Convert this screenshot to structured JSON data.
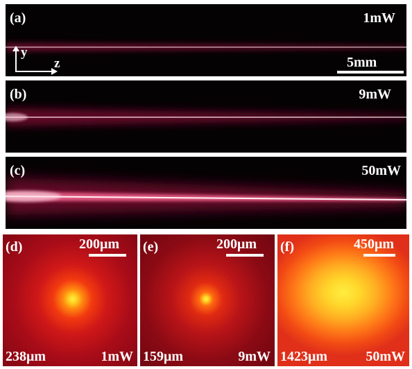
{
  "panels": {
    "a": {
      "label": "(a)",
      "power": "1mW",
      "axis_y": "y",
      "axis_z": "z",
      "scale": "5mm"
    },
    "b": {
      "label": "(b)",
      "power": "9mW"
    },
    "c": {
      "label": "(c)",
      "power": "50mW"
    },
    "d": {
      "label": "(d)",
      "scale": "200μm",
      "width": "238μm",
      "power": "1mW"
    },
    "e": {
      "label": "(e)",
      "scale": "200μm",
      "width": "159μm",
      "power": "9mW"
    },
    "f": {
      "label": "(f)",
      "scale": "450μm",
      "width": "1423μm",
      "power": "50mW"
    }
  },
  "colors": {
    "background": "#050203",
    "beam": "#ff3a6a",
    "spot_core": "#fff04a",
    "spot_outer": "#c8101a"
  }
}
